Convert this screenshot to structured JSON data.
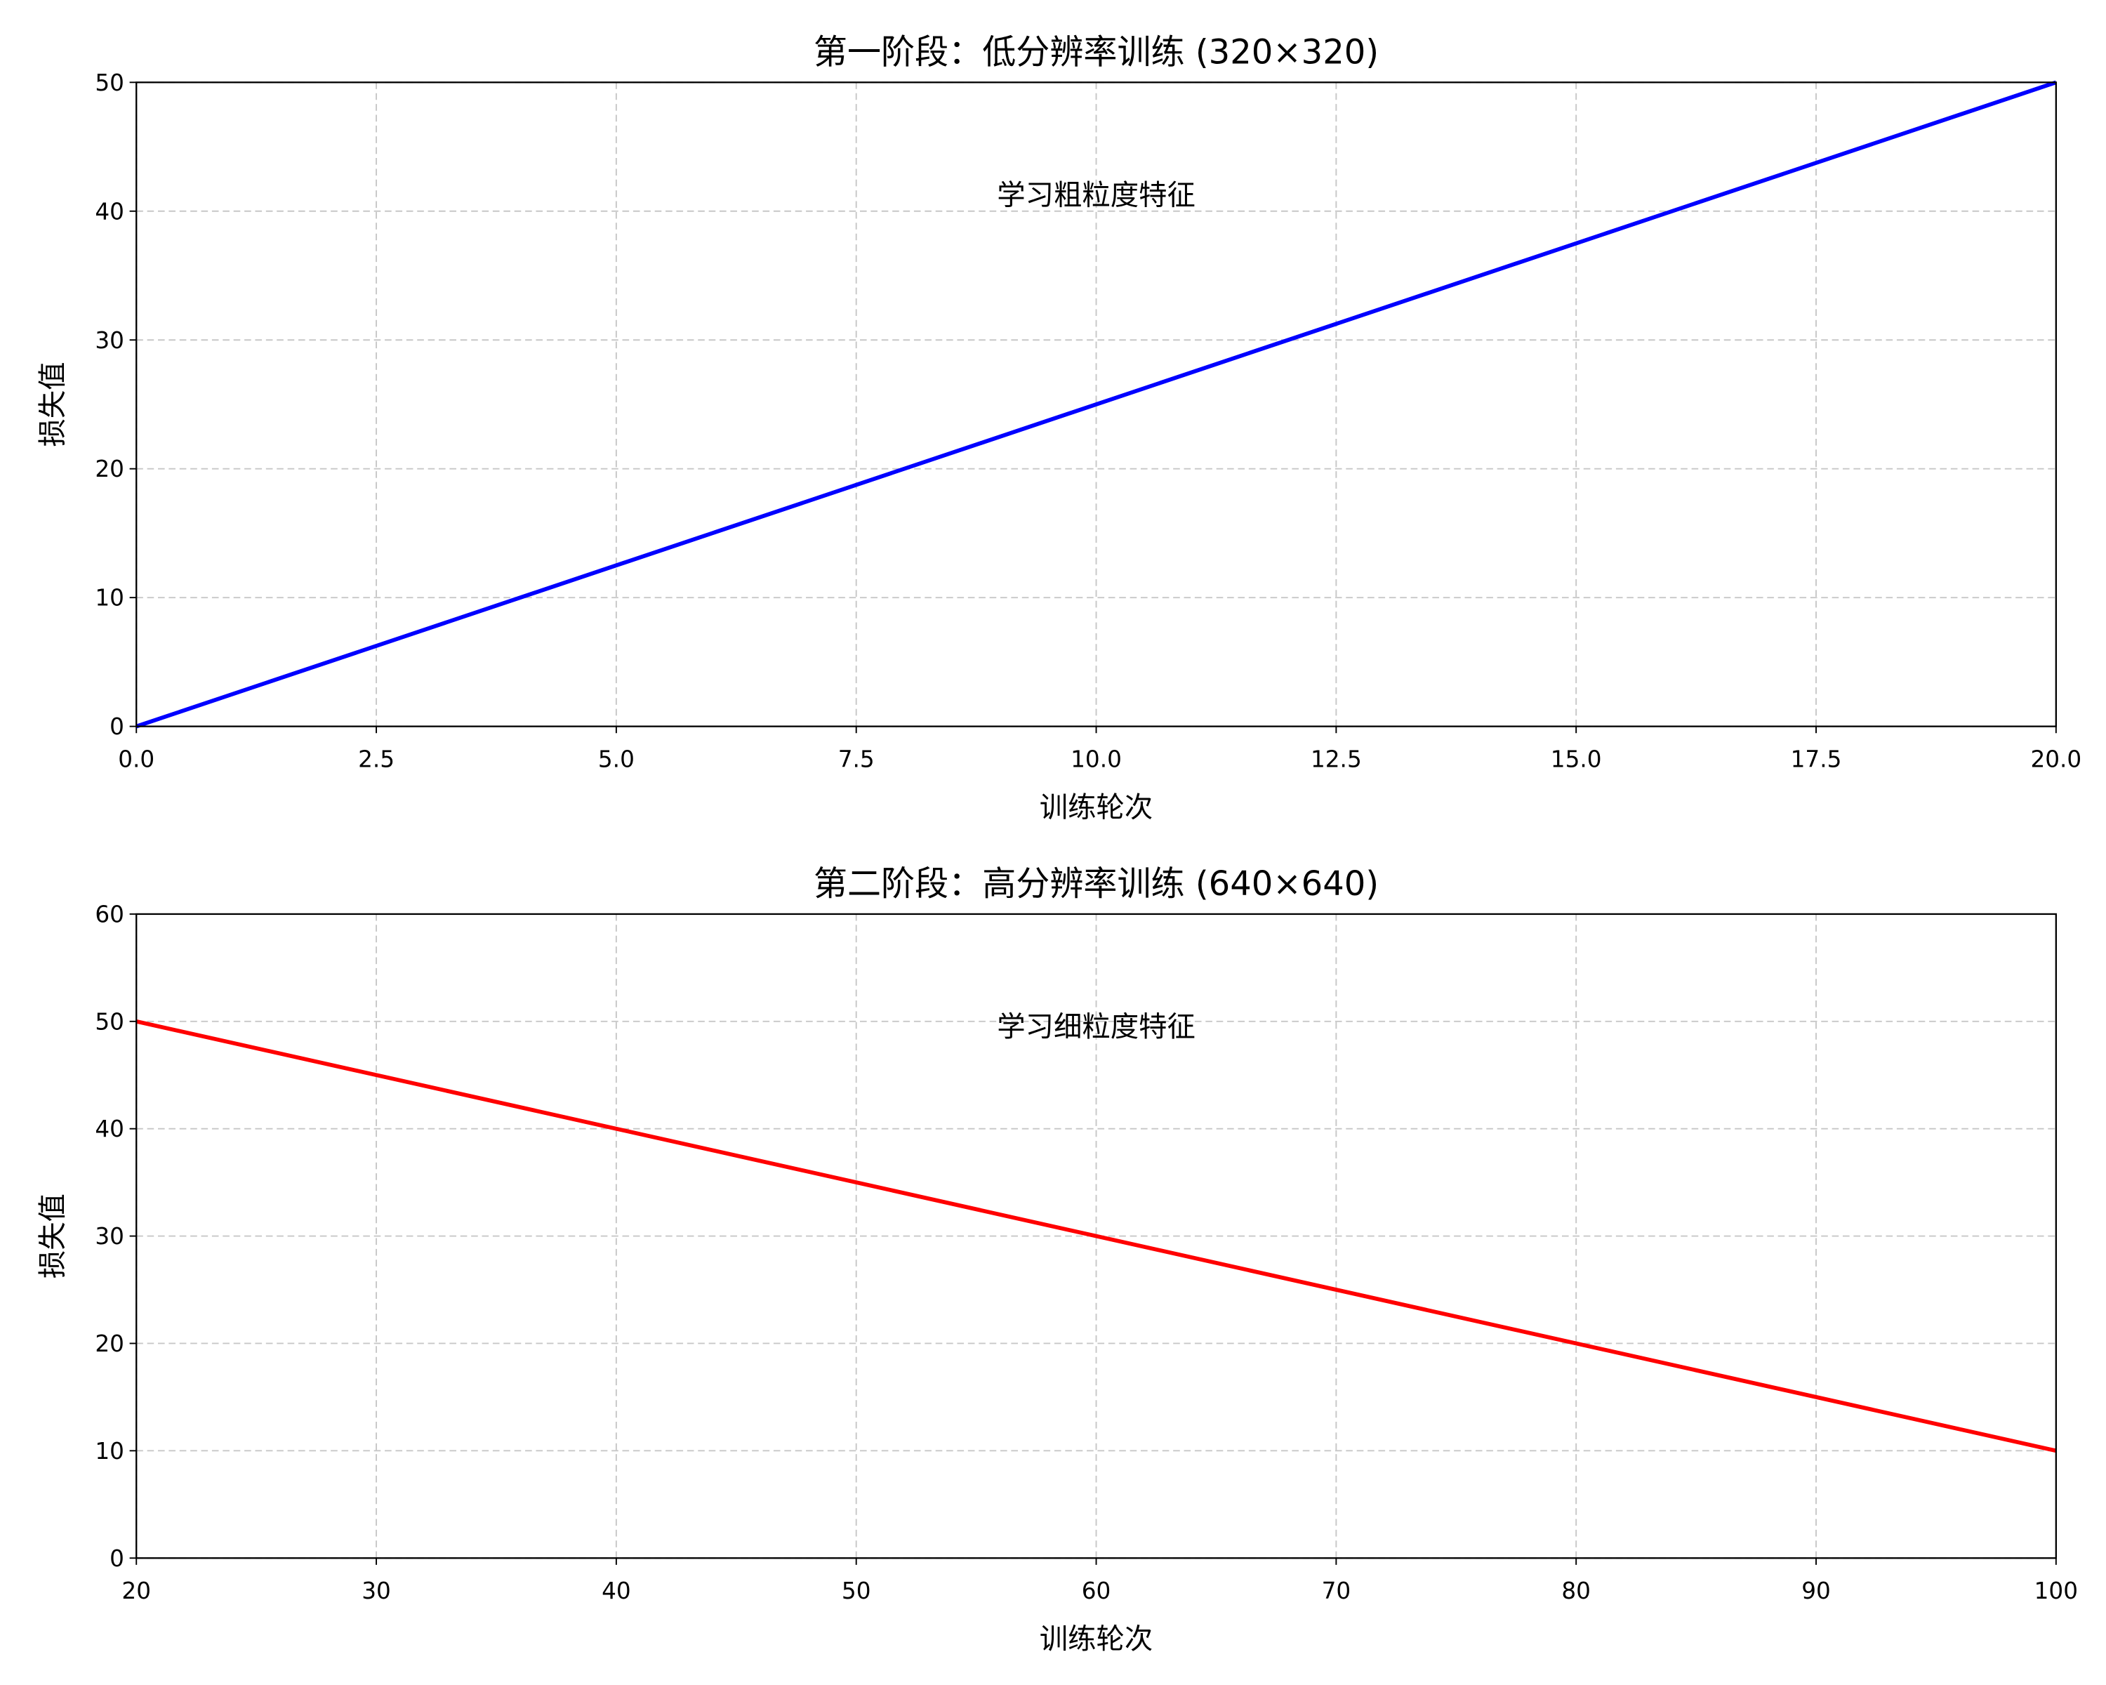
{
  "chart_data": [
    {
      "type": "line",
      "title": "第一阶段：低分辨率训练 (320×320)",
      "x_label": "训练轮次",
      "y_label": "损失值",
      "annotation": "学习粗粒度特征",
      "x": [
        0,
        20
      ],
      "values": [
        0,
        50
      ],
      "color": "#0000ff",
      "xlim": [
        0,
        20
      ],
      "ylim": [
        0,
        50
      ],
      "xticks": [
        {
          "value": 0,
          "label": "0.0"
        },
        2.5,
        {
          "value": 5,
          "label": "5.0"
        },
        7.5,
        {
          "value": 10,
          "label": "10.0"
        },
        12.5,
        {
          "value": 15,
          "label": "15.0"
        },
        17.5,
        {
          "value": 20,
          "label": "20.0"
        }
      ],
      "yticks": [
        0,
        10,
        20,
        30,
        40,
        50
      ],
      "grid": true
    },
    {
      "type": "line",
      "title": "第二阶段：高分辨率训练 (640×640)",
      "x_label": "训练轮次",
      "y_label": "损失值",
      "annotation": "学习细粒度特征",
      "x": [
        20,
        100
      ],
      "values": [
        50,
        10
      ],
      "color": "#ff0000",
      "xlim": [
        20,
        100
      ],
      "ylim": [
        0,
        60
      ],
      "xticks": [
        20,
        30,
        40,
        50,
        60,
        70,
        80,
        90,
        100
      ],
      "yticks": [
        0,
        10,
        20,
        30,
        40,
        50,
        60
      ],
      "grid": true
    }
  ]
}
